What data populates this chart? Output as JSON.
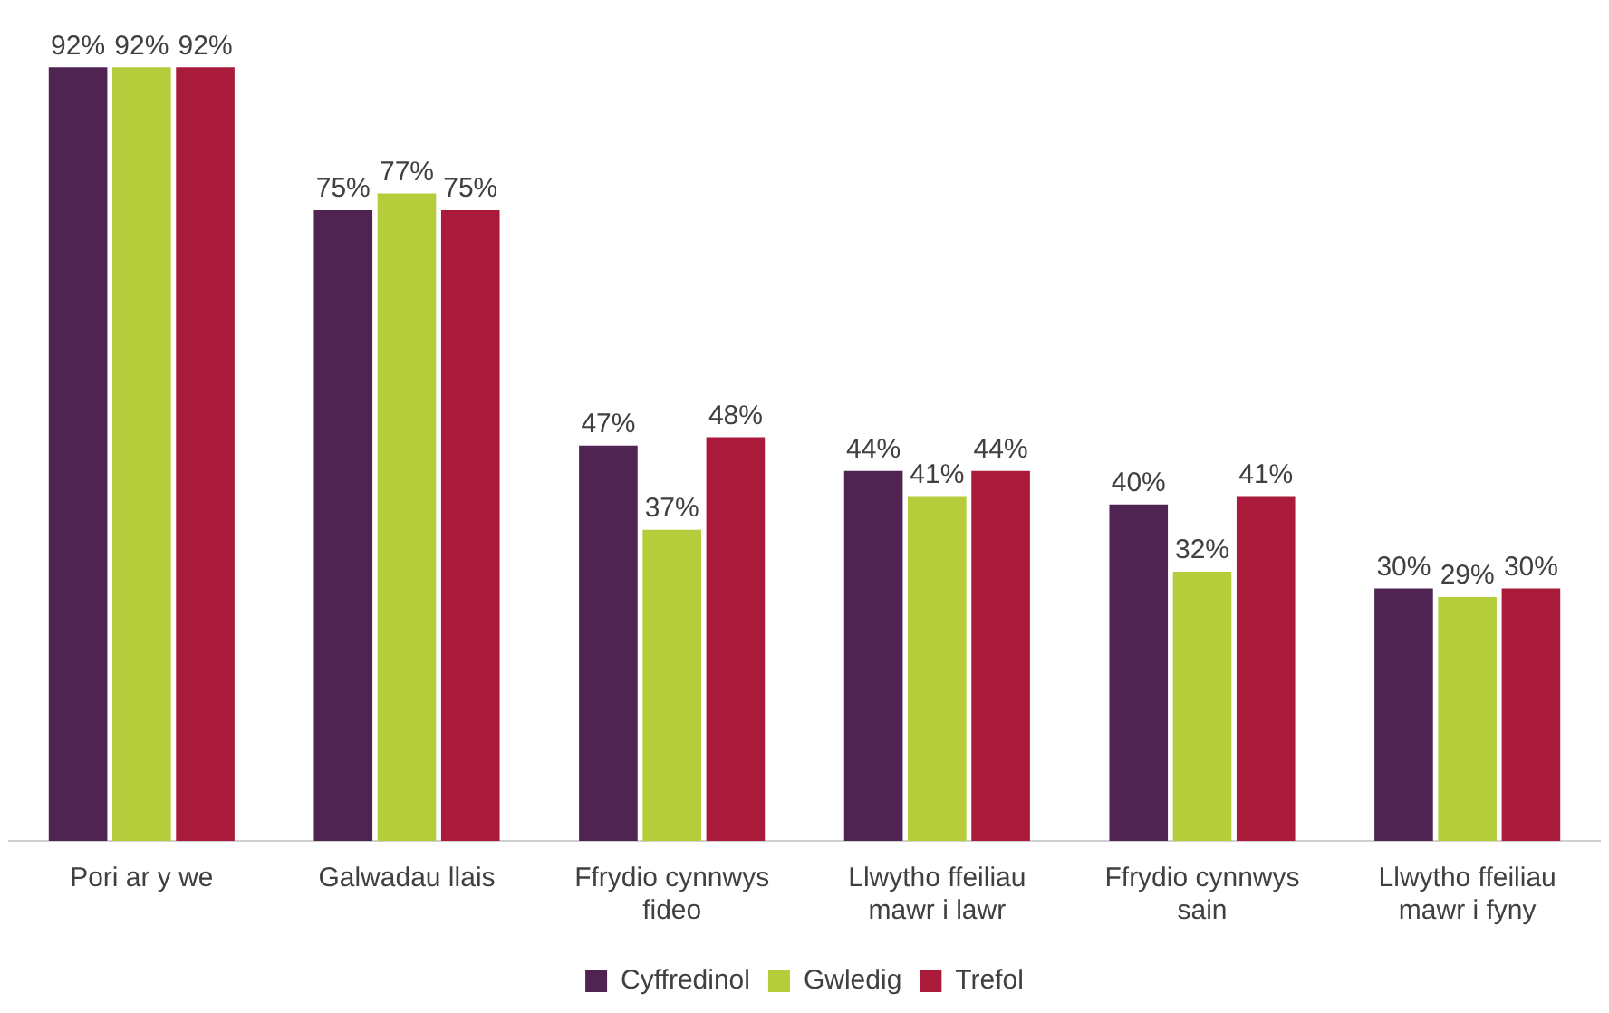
{
  "chart_data": {
    "type": "bar",
    "categories": [
      "Pori ar y we",
      "Galwadau llais",
      "Ffrydio cynnwys fideo",
      "Llwytho ffeiliau mawr i lawr",
      "Ffrydio cynnwys sain",
      "Llwytho ffeiliau mawr i fyny"
    ],
    "series": [
      {
        "name": "Cyffredinol",
        "color": "#4f2352",
        "values": [
          92,
          75,
          47,
          44,
          40,
          30
        ],
        "value_labels": [
          "92%",
          "75%",
          "47%",
          "44%",
          "40%",
          "30%"
        ]
      },
      {
        "name": "Gwledig",
        "color": "#b5cc3b",
        "values": [
          92,
          77,
          37,
          41,
          32,
          29
        ],
        "value_labels": [
          "92%",
          "77%",
          "37%",
          "41%",
          "32%",
          "29%"
        ]
      },
      {
        "name": "Trefol",
        "color": "#a91a3b",
        "values": [
          92,
          75,
          48,
          44,
          41,
          30
        ],
        "value_labels": [
          "92%",
          "75%",
          "48%",
          "44%",
          "41%",
          "30%"
        ]
      }
    ],
    "tick_labels": "x",
    "grid": false,
    "legend": "bottom"
  }
}
